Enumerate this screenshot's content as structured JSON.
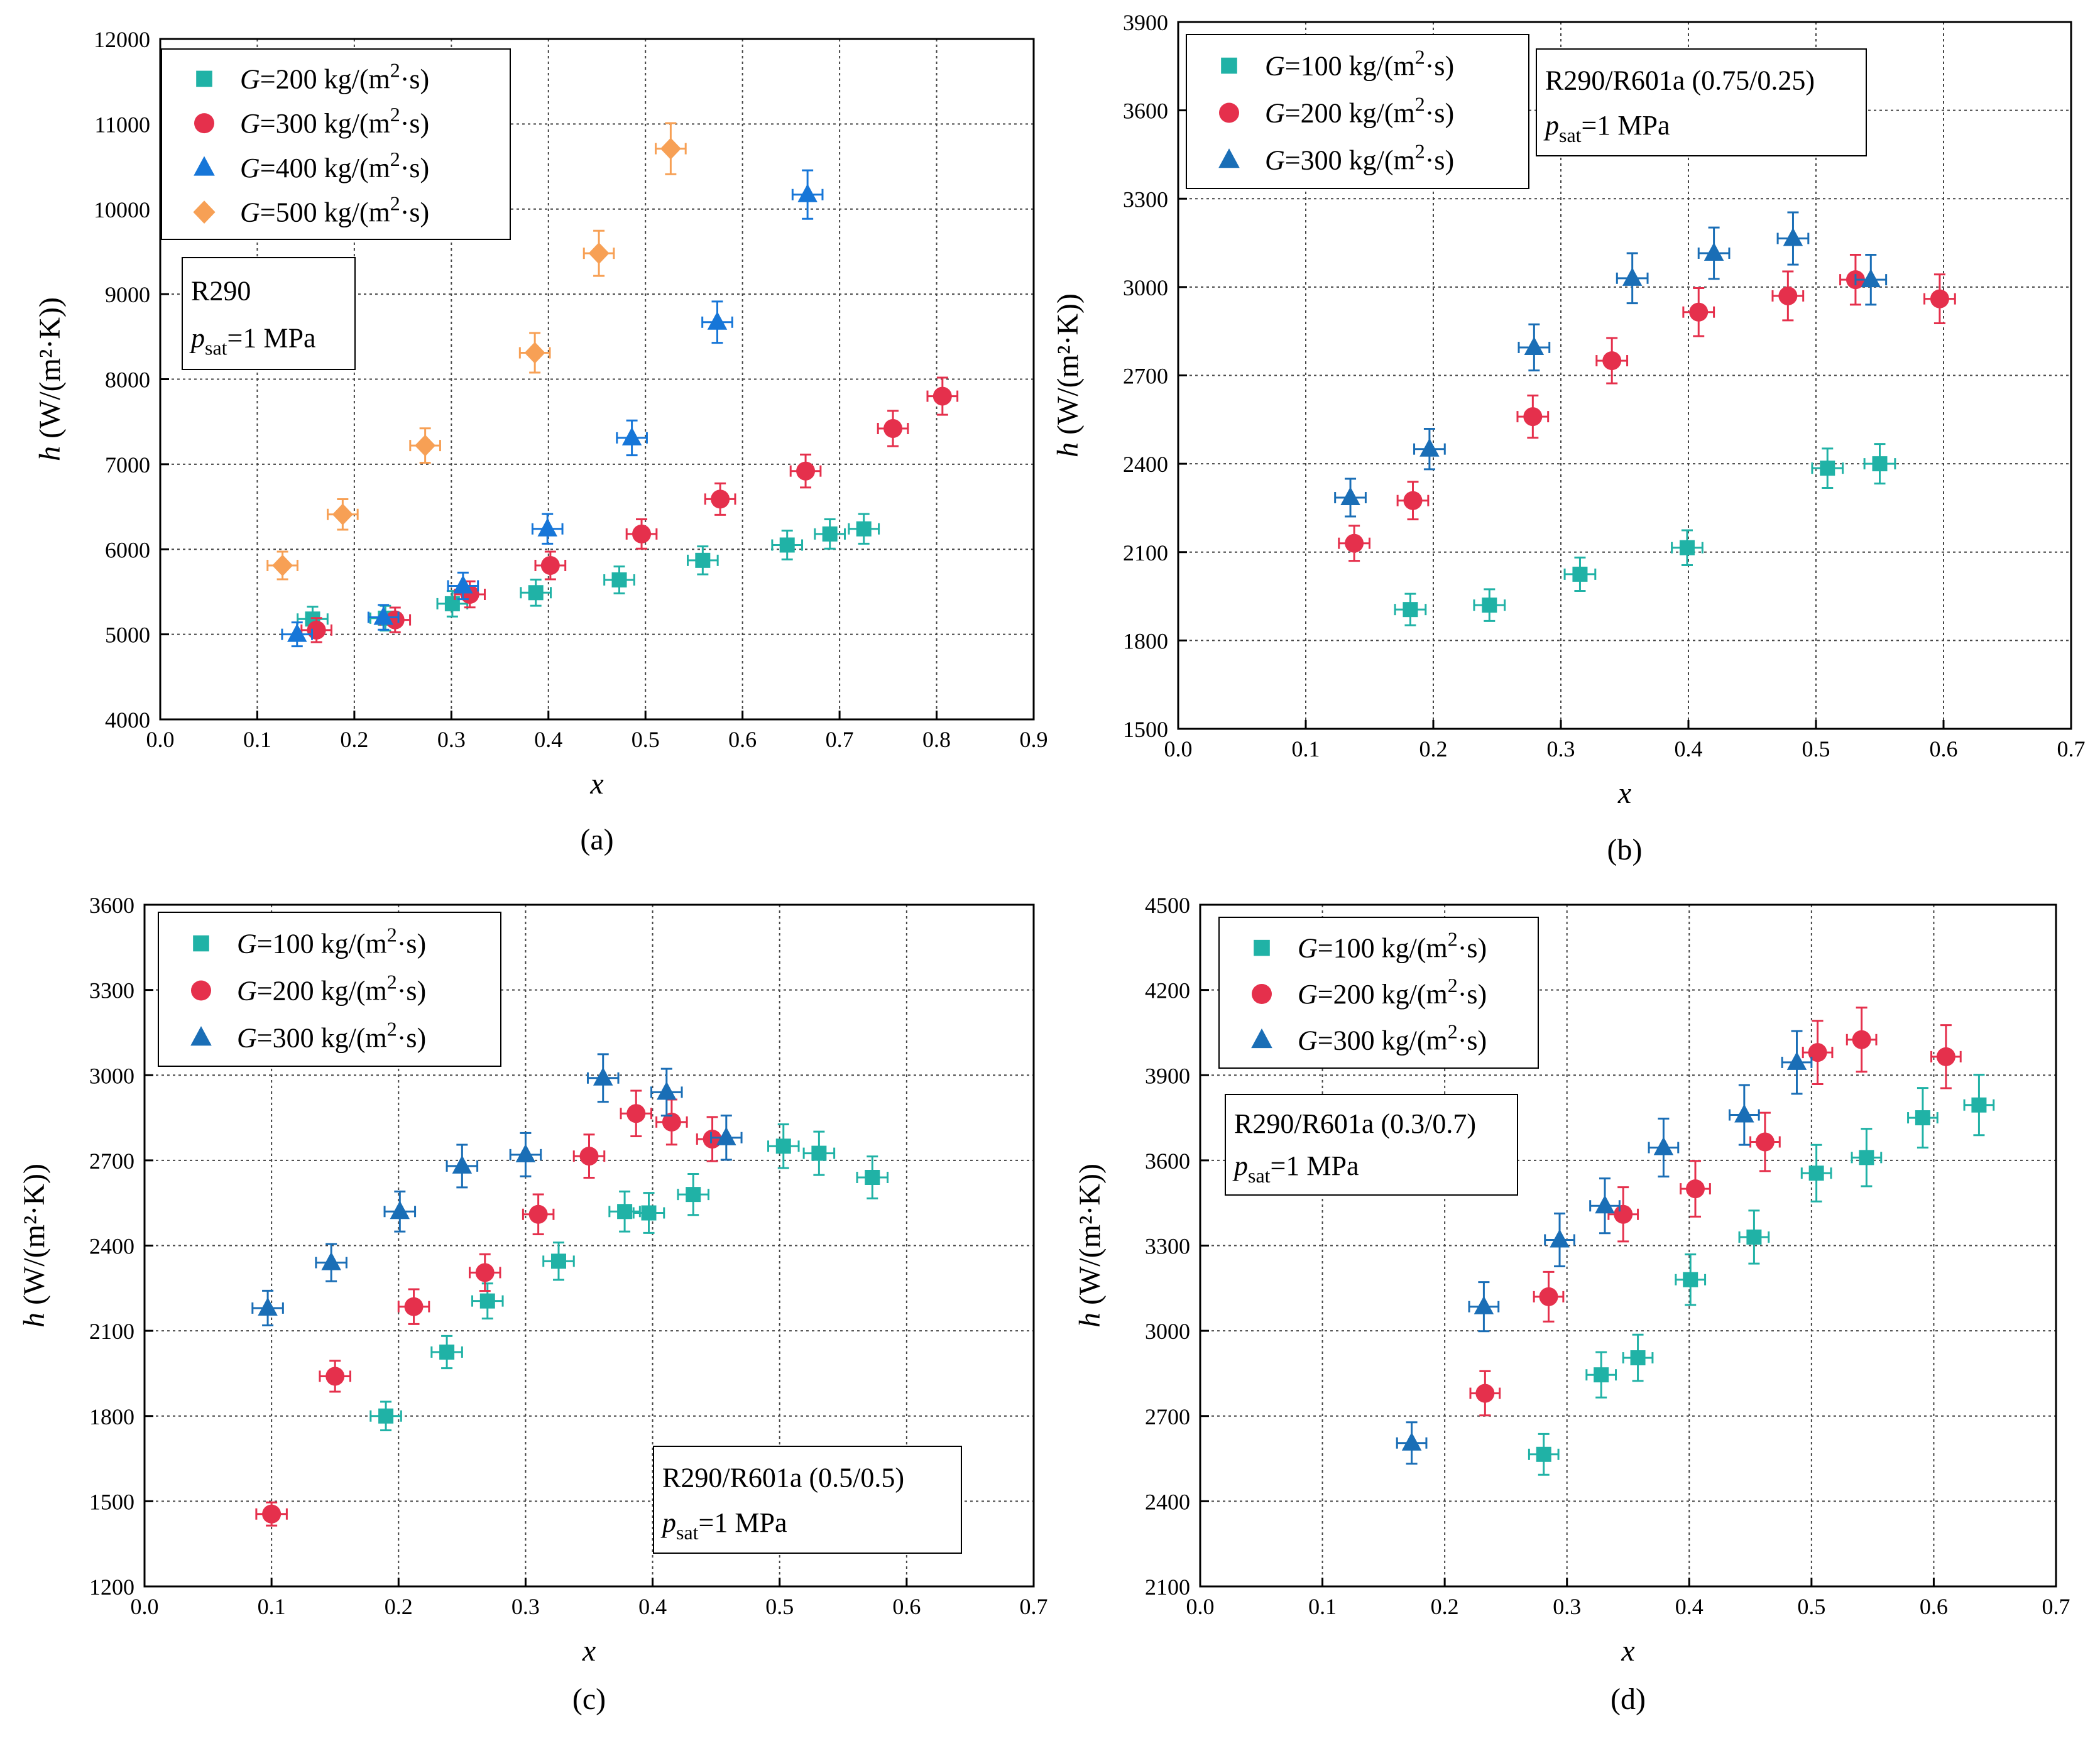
{
  "colors": {
    "teal": "#20b2a6",
    "red": "#e5304c",
    "blue": "#1676d8",
    "orange": "#f7a055",
    "blueDark": "#1a6eb6"
  },
  "chart_data": [
    {
      "id": "a",
      "type": "scatter",
      "caption": "(a)",
      "xlabel": "x",
      "ylabel_var": "h",
      "ylabel_units": "(W/(m²·K))",
      "xlim": [
        0,
        0.9
      ],
      "ylim": [
        4000,
        12000
      ],
      "xticks": [
        "0.0",
        "0.1",
        "0.2",
        "0.3",
        "0.4",
        "0.5",
        "0.6",
        "0.7",
        "0.8",
        "0.9"
      ],
      "yticks": [
        "4000",
        "5000",
        "6000",
        "7000",
        "8000",
        "9000",
        "10000",
        "11000",
        "12000"
      ],
      "info": {
        "fluid": "R290",
        "psat_var": "p",
        "psat_sub": "sat",
        "psat_value": "=1 MPa"
      },
      "series": [
        {
          "name_var": "G",
          "name_value": "=200 kg/(m",
          "name_sup": "2",
          "name_tail": "·s)",
          "marker": "square",
          "color": "#20b2a6",
          "points": [
            [
              0.157,
              5180
            ],
            [
              0.232,
              5190
            ],
            [
              0.301,
              5360
            ],
            [
              0.387,
              5490
            ],
            [
              0.473,
              5640
            ],
            [
              0.559,
              5870
            ],
            [
              0.646,
              6050
            ],
            [
              0.69,
              6180
            ],
            [
              0.725,
              6240
            ]
          ]
        },
        {
          "name_var": "G",
          "name_value": "=300 kg/(m",
          "name_sup": "2",
          "name_tail": "·s)",
          "marker": "circle",
          "color": "#e5304c",
          "points": [
            [
              0.161,
              5050
            ],
            [
              0.242,
              5170
            ],
            [
              0.319,
              5470
            ],
            [
              0.402,
              5810
            ],
            [
              0.496,
              6180
            ],
            [
              0.577,
              6590
            ],
            [
              0.665,
              6920
            ],
            [
              0.755,
              7420
            ],
            [
              0.806,
              7800
            ]
          ]
        },
        {
          "name_var": "G",
          "name_value": "=400 kg/(m",
          "name_sup": "2",
          "name_tail": "·s)",
          "marker": "triangle",
          "color": "#1676d8",
          "points": [
            [
              0.141,
              5000
            ],
            [
              0.23,
              5200
            ],
            [
              0.312,
              5570
            ],
            [
              0.399,
              6240
            ],
            [
              0.486,
              7310
            ],
            [
              0.574,
              8670
            ],
            [
              0.667,
              10170
            ]
          ]
        },
        {
          "name_var": "G",
          "name_value": "=500 kg/(m",
          "name_sup": "2",
          "name_tail": "·s)",
          "marker": "diamond",
          "color": "#f7a055",
          "points": [
            [
              0.126,
              5810
            ],
            [
              0.188,
              6410
            ],
            [
              0.273,
              7220
            ],
            [
              0.386,
              8310
            ],
            [
              0.452,
              9480
            ],
            [
              0.526,
              10710
            ]
          ]
        }
      ]
    },
    {
      "id": "b",
      "type": "scatter",
      "caption": "(b)",
      "xlabel": "x",
      "ylabel_var": "h",
      "ylabel_units": "(W/(m²·K))",
      "xlim": [
        0,
        0.7
      ],
      "ylim": [
        1500,
        3900
      ],
      "xticks": [
        "0.0",
        "0.1",
        "0.2",
        "0.3",
        "0.4",
        "0.5",
        "0.6",
        "0.7"
      ],
      "yticks": [
        "1500",
        "1800",
        "2100",
        "2400",
        "2700",
        "3000",
        "3300",
        "3600",
        "3900"
      ],
      "info": {
        "fluid": "R290/R601a (0.75/0.25)",
        "psat_var": "p",
        "psat_sub": "sat",
        "psat_value": "=1 MPa"
      },
      "series": [
        {
          "name_var": "G",
          "name_value": "=100 kg/(m",
          "name_sup": "2",
          "name_tail": "·s)",
          "marker": "square",
          "color": "#20b2a6",
          "points": [
            [
              0.182,
              1905
            ],
            [
              0.244,
              1920
            ],
            [
              0.315,
              2025
            ],
            [
              0.399,
              2115
            ],
            [
              0.509,
              2385
            ],
            [
              0.55,
              2400
            ]
          ]
        },
        {
          "name_var": "G",
          "name_value": "=200 kg/(m",
          "name_sup": "2",
          "name_tail": "·s)",
          "marker": "circle",
          "color": "#e5304c",
          "points": [
            [
              0.138,
              2130
            ],
            [
              0.184,
              2275
            ],
            [
              0.278,
              2560
            ],
            [
              0.34,
              2750
            ],
            [
              0.408,
              2915
            ],
            [
              0.478,
              2970
            ],
            [
              0.531,
              3025
            ],
            [
              0.597,
              2960
            ]
          ]
        },
        {
          "name_var": "G",
          "name_value": "=300 kg/(m",
          "name_sup": "2",
          "name_tail": "·s)",
          "marker": "triangle",
          "color": "#1a6eb6",
          "points": [
            [
              0.135,
              2285
            ],
            [
              0.197,
              2450
            ],
            [
              0.279,
              2795
            ],
            [
              0.356,
              3030
            ],
            [
              0.42,
              3115
            ],
            [
              0.482,
              3165
            ],
            [
              0.543,
              3025
            ]
          ]
        }
      ]
    },
    {
      "id": "c",
      "type": "scatter",
      "caption": "(c)",
      "xlabel": "x",
      "ylabel_var": "h",
      "ylabel_units": "(W/(m²·K))",
      "xlim": [
        0,
        0.7
      ],
      "ylim": [
        1200,
        3600
      ],
      "xticks": [
        "0.0",
        "0.1",
        "0.2",
        "0.3",
        "0.4",
        "0.5",
        "0.6",
        "0.7"
      ],
      "yticks": [
        "1200",
        "1500",
        "1800",
        "2100",
        "2400",
        "2700",
        "3000",
        "3300",
        "3600"
      ],
      "info": {
        "fluid": "R290/R601a (0.5/0.5)",
        "psat_var": "p",
        "psat_sub": "sat",
        "psat_value": "=1 MPa"
      },
      "series": [
        {
          "name_var": "G",
          "name_value": "=100 kg/(m",
          "name_sup": "2",
          "name_tail": "·s)",
          "marker": "square",
          "color": "#20b2a6",
          "points": [
            [
              0.19,
              1800
            ],
            [
              0.238,
              2025
            ],
            [
              0.27,
              2205
            ],
            [
              0.326,
              2345
            ],
            [
              0.378,
              2520
            ],
            [
              0.397,
              2515
            ],
            [
              0.432,
              2580
            ],
            [
              0.503,
              2750
            ],
            [
              0.531,
              2725
            ],
            [
              0.573,
              2640
            ]
          ]
        },
        {
          "name_var": "G",
          "name_value": "=200 kg/(m",
          "name_sup": "2",
          "name_tail": "·s)",
          "marker": "circle",
          "color": "#e5304c",
          "points": [
            [
              0.1,
              1455
            ],
            [
              0.15,
              1940
            ],
            [
              0.212,
              2185
            ],
            [
              0.268,
              2305
            ],
            [
              0.31,
              2510
            ],
            [
              0.35,
              2715
            ],
            [
              0.387,
              2865
            ],
            [
              0.415,
              2835
            ],
            [
              0.447,
              2775
            ]
          ]
        },
        {
          "name_var": "G",
          "name_value": "=300 kg/(m",
          "name_sup": "2",
          "name_tail": "·s)",
          "marker": "triangle",
          "color": "#1a6eb6",
          "points": [
            [
              0.097,
              2180
            ],
            [
              0.147,
              2340
            ],
            [
              0.201,
              2520
            ],
            [
              0.25,
              2680
            ],
            [
              0.3,
              2720
            ],
            [
              0.361,
              2990
            ],
            [
              0.411,
              2940
            ],
            [
              0.458,
              2780
            ]
          ]
        }
      ]
    },
    {
      "id": "d",
      "type": "scatter",
      "caption": "(d)",
      "xlabel": "x",
      "ylabel_var": "h",
      "ylabel_units": "(W/(m²·K))",
      "xlim": [
        0,
        0.7
      ],
      "ylim": [
        2100,
        4500
      ],
      "xticks": [
        "0.0",
        "0.1",
        "0.2",
        "0.3",
        "0.4",
        "0.5",
        "0.6",
        "0.7"
      ],
      "yticks": [
        "2100",
        "2400",
        "2700",
        "3000",
        "3300",
        "3600",
        "3900",
        "4200",
        "4500"
      ],
      "info": {
        "fluid": "R290/R601a (0.3/0.7)",
        "psat_var": "p",
        "psat_sub": "sat",
        "psat_value": "=1 MPa"
      },
      "series": [
        {
          "name_var": "G",
          "name_value": "=100 kg/(m",
          "name_sup": "2",
          "name_tail": "·s)",
          "marker": "square",
          "color": "#20b2a6",
          "points": [
            [
              0.281,
              2565
            ],
            [
              0.328,
              2845
            ],
            [
              0.358,
              2905
            ],
            [
              0.401,
              3180
            ],
            [
              0.453,
              3330
            ],
            [
              0.504,
              3555
            ],
            [
              0.545,
              3610
            ],
            [
              0.591,
              3750
            ],
            [
              0.637,
              3795
            ]
          ]
        },
        {
          "name_var": "G",
          "name_value": "=200 kg/(m",
          "name_sup": "2",
          "name_tail": "·s)",
          "marker": "circle",
          "color": "#e5304c",
          "points": [
            [
              0.233,
              2780
            ],
            [
              0.285,
              3120
            ],
            [
              0.346,
              3410
            ],
            [
              0.405,
              3500
            ],
            [
              0.462,
              3665
            ],
            [
              0.505,
              3980
            ],
            [
              0.541,
              4025
            ],
            [
              0.61,
              3965
            ]
          ]
        },
        {
          "name_var": "G",
          "name_value": "=300 kg/(m",
          "name_sup": "2",
          "name_tail": "·s)",
          "marker": "triangle",
          "color": "#1a6eb6",
          "points": [
            [
              0.173,
              2605
            ],
            [
              0.232,
              3085
            ],
            [
              0.294,
              3320
            ],
            [
              0.331,
              3440
            ],
            [
              0.379,
              3645
            ],
            [
              0.445,
              3760
            ],
            [
              0.488,
              3945
            ]
          ]
        }
      ]
    }
  ]
}
